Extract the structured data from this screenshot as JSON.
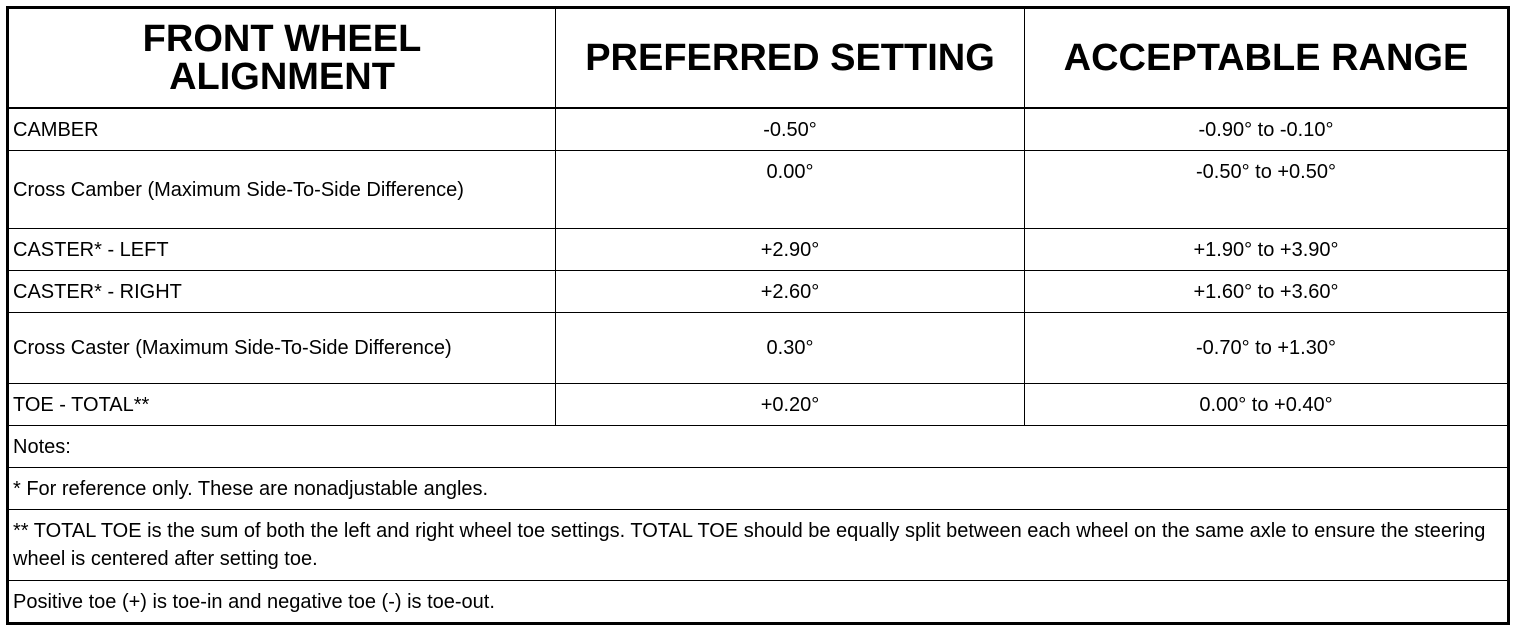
{
  "headers": [
    "FRONT WHEEL ALIGNMENT",
    "PREFERRED SETTING",
    "ACCEPTABLE RANGE"
  ],
  "rows": [
    {
      "label": "CAMBER",
      "preferred": "-0.50°",
      "range": "-0.90° to -0.10°"
    },
    {
      "label": "Cross Camber (Maximum Side-To-Side Difference)",
      "preferred": "0.00°",
      "range": "-0.50° to +0.50°"
    },
    {
      "label": "CASTER* - LEFT",
      "preferred": "+2.90°",
      "range": "+1.90° to +3.90°"
    },
    {
      "label": "CASTER* - RIGHT",
      "preferred": "+2.60°",
      "range": "+1.60° to +3.60°"
    },
    {
      "label": "Cross Caster (Maximum Side-To-Side Difference)",
      "preferred": "0.30°",
      "range": "-0.70° to +1.30°"
    },
    {
      "label": "TOE - TOTAL**",
      "preferred": "+0.20°",
      "range": "0.00° to +0.40°"
    }
  ],
  "notes": [
    "Notes:",
    "* For reference only. These are nonadjustable angles.",
    "** TOTAL TOE is the sum of both the left and right wheel toe settings. TOTAL TOE should be equally split between each wheel on the same axle to ensure the steering wheel is centered after setting toe.",
    "Positive toe (+) is toe-in and negative toe (-) is toe-out."
  ]
}
